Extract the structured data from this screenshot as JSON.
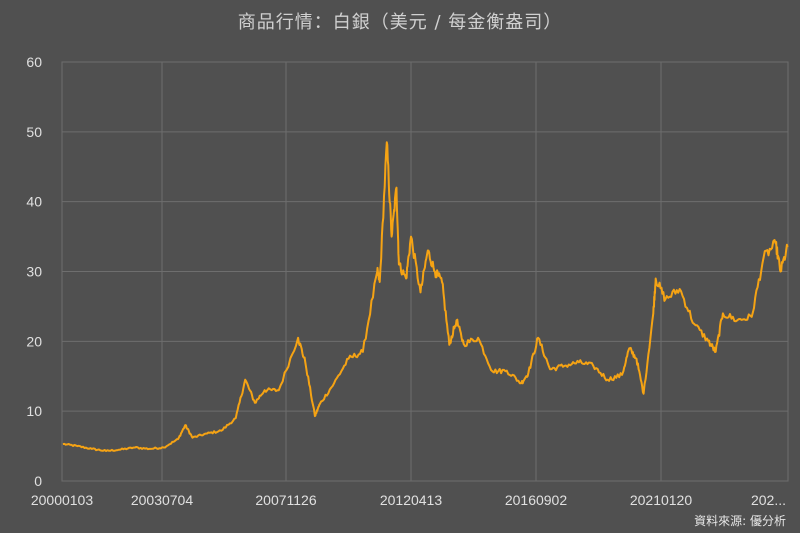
{
  "title": "商品行情：白銀（美元 / 每金衡盎司）",
  "source": "資料來源: 優分析",
  "colors": {
    "background": "#505050",
    "grid": "#6e6e6e",
    "line": "#f5a314",
    "text": "#e0e0e0"
  },
  "chart_data": {
    "type": "line",
    "title": "商品行情：白銀（美元 / 每金衡盎司）",
    "xlabel": "",
    "ylabel": "",
    "ylim": [
      0,
      60
    ],
    "yticks": [
      0,
      10,
      20,
      30,
      40,
      50,
      60
    ],
    "xticks": [
      "20000103",
      "20030704",
      "20071126",
      "20120413",
      "20160902",
      "20210120",
      "202..."
    ],
    "grid": true,
    "legend": "none",
    "series": [
      {
        "name": "",
        "x": [
          "2000-01",
          "2000-07",
          "2001-01",
          "2001-07",
          "2002-01",
          "2002-07",
          "2003-01",
          "2003-07",
          "2004-01",
          "2004-04",
          "2004-07",
          "2005-01",
          "2005-07",
          "2006-01",
          "2006-05",
          "2006-09",
          "2007-01",
          "2007-07",
          "2008-03",
          "2008-06",
          "2008-10",
          "2008-12",
          "2009-06",
          "2009-12",
          "2010-06",
          "2010-12",
          "2011-01",
          "2011-04",
          "2011-06",
          "2011-08",
          "2011-09",
          "2011-12",
          "2012-02",
          "2012-06",
          "2012-09",
          "2012-12",
          "2013-03",
          "2013-06",
          "2013-09",
          "2013-12",
          "2014-06",
          "2014-12",
          "2015-06",
          "2015-12",
          "2016-03",
          "2016-07",
          "2016-12",
          "2017-06",
          "2017-12",
          "2018-06",
          "2018-12",
          "2019-06",
          "2019-09",
          "2019-12",
          "2020-03",
          "2020-07",
          "2020-08",
          "2020-12",
          "2021-06",
          "2021-12",
          "2022-06",
          "2022-09",
          "2022-12",
          "2023-06",
          "2023-12",
          "2024-05",
          "2024-10",
          "2024-12",
          "2025-03"
        ],
        "values": [
          5.3,
          5.0,
          4.6,
          4.3,
          4.5,
          4.8,
          4.6,
          4.8,
          6.0,
          8.0,
          6.2,
          6.8,
          7.2,
          9.0,
          14.5,
          11.2,
          13.0,
          13.0,
          20.5,
          17.0,
          9.3,
          11.0,
          14.0,
          17.5,
          18.5,
          30.0,
          28.5,
          48.5,
          35.0,
          42.0,
          31.0,
          29.0,
          35.0,
          27.0,
          33.0,
          30.0,
          28.5,
          19.5,
          23.0,
          19.6,
          20.5,
          15.7,
          15.8,
          14.0,
          15.5,
          20.5,
          16.0,
          16.5,
          17.0,
          16.5,
          14.5,
          15.2,
          19.0,
          17.5,
          12.5,
          24.0,
          29.0,
          26.0,
          27.5,
          22.5,
          20.0,
          18.5,
          24.0,
          23.0,
          23.5,
          32.0,
          34.0,
          30.0,
          33.5
        ]
      }
    ]
  }
}
